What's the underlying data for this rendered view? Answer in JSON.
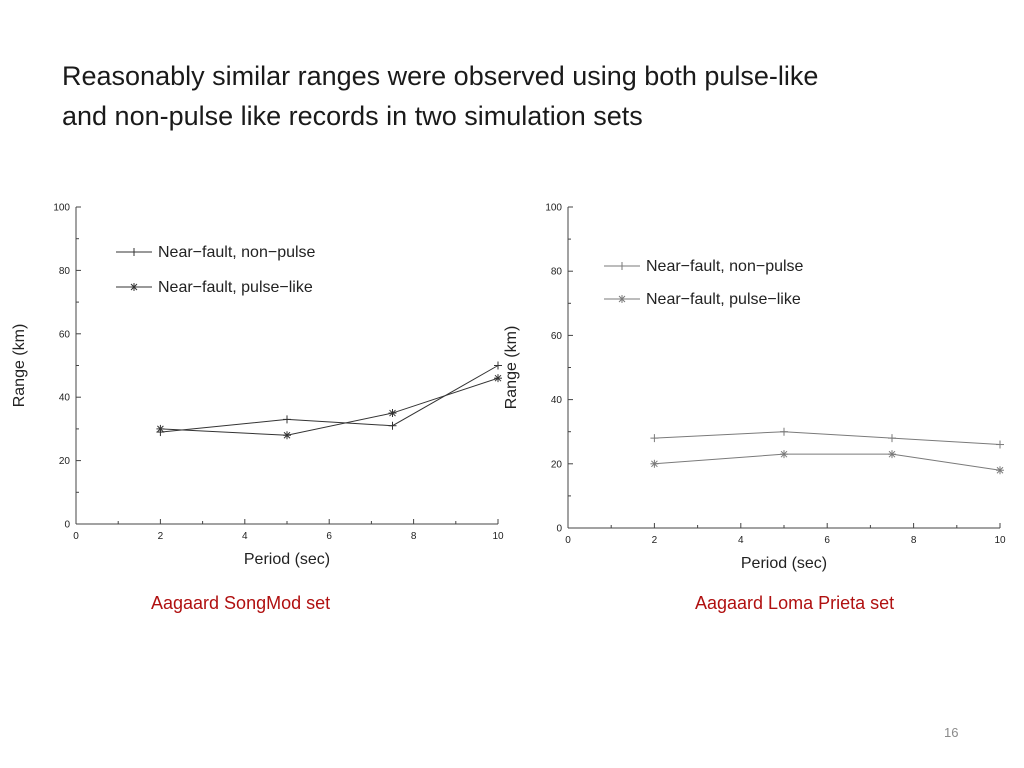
{
  "slide": {
    "title_lines": [
      "Reasonably similar ranges were observed using both pulse-like",
      "and non-pulse like records in two simulation sets"
    ],
    "page_number": "16"
  },
  "chart_data": [
    {
      "type": "line",
      "caption": "Aagaard SongMod set",
      "xlabel": "Period (sec)",
      "ylabel": "Range (km)",
      "xlim": [
        0,
        10
      ],
      "ylim": [
        0,
        100
      ],
      "xticks": [
        "0",
        "2",
        "4",
        "6",
        "8",
        "10"
      ],
      "yticks": [
        "0",
        "20",
        "40",
        "60",
        "80",
        "100"
      ],
      "legend_position": "top-left",
      "grid": false,
      "series": [
        {
          "name": "Near−fault, non−pulse",
          "marker": "plus",
          "x": [
            2,
            5,
            7.5,
            10
          ],
          "y": [
            29,
            33,
            31,
            50
          ]
        },
        {
          "name": "Near−fault, pulse−like",
          "marker": "star",
          "x": [
            2,
            5,
            7.5,
            10
          ],
          "y": [
            30,
            28,
            35,
            46
          ]
        }
      ]
    },
    {
      "type": "line",
      "caption": "Aagaard Loma Prieta set",
      "xlabel": "Period (sec)",
      "ylabel": "Range (km)",
      "xlim": [
        0,
        10
      ],
      "ylim": [
        0,
        100
      ],
      "xticks": [
        "0",
        "2",
        "4",
        "6",
        "8",
        "10"
      ],
      "yticks": [
        "0",
        "20",
        "40",
        "60",
        "80",
        "100"
      ],
      "legend_position": "top-left",
      "grid": false,
      "series": [
        {
          "name": "Near−fault, non−pulse",
          "marker": "plus",
          "x": [
            2,
            5,
            7.5,
            10
          ],
          "y": [
            28,
            30,
            28,
            26
          ]
        },
        {
          "name": "Near−fault, pulse−like",
          "marker": "star",
          "x": [
            2,
            5,
            7.5,
            10
          ],
          "y": [
            20,
            23,
            23,
            18
          ]
        }
      ]
    }
  ],
  "colors": {
    "line_left": "#333333",
    "line_right": "#7a7a7a",
    "axis": "#444444",
    "caption": "#b01010"
  }
}
